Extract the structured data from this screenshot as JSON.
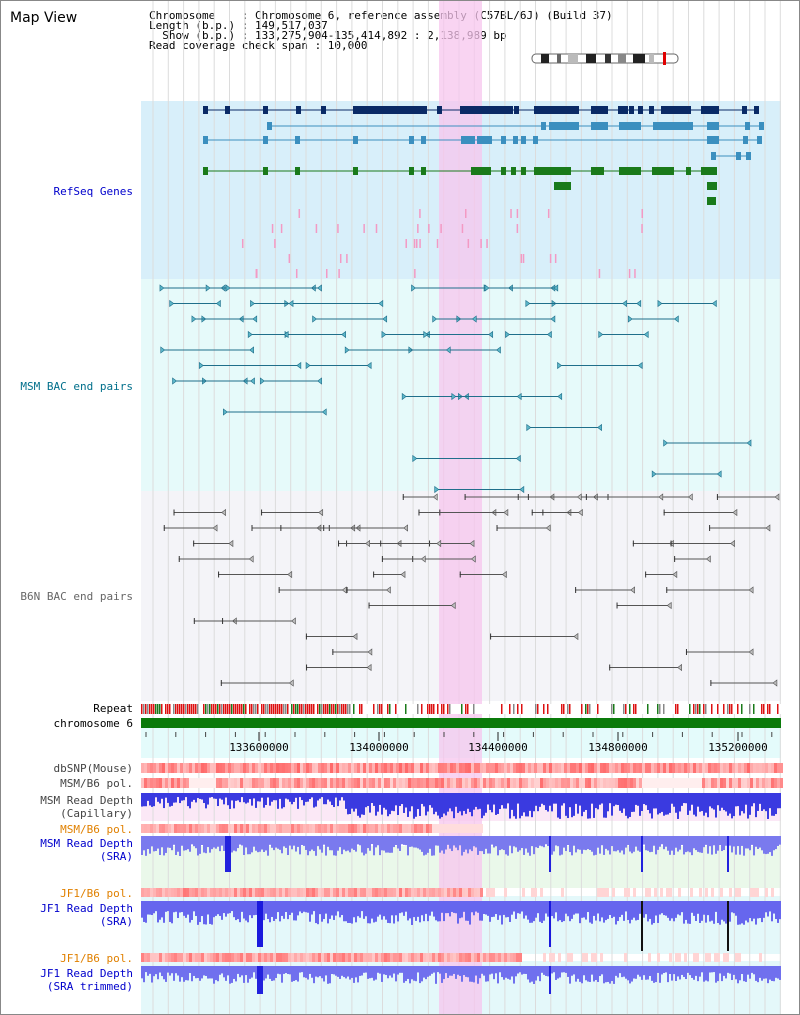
{
  "title": "Map View",
  "info": {
    "chromosome": "Chromosome    : Chromosome 6, reference assembly (C57BL/6J) (Build 37)",
    "length": "Length (b.p.) : 149,517,037",
    "show": "  Show (b.p.) : 133,275,904-135,414,892 : 2,138,989 bp",
    "coverage": "Read coverage check span : 10,000"
  },
  "sections": {
    "refseq": "RefSeq Genes",
    "msm_bac": "MSM BAC end pairs",
    "b6n_bac": "B6N BAC end pairs"
  },
  "tracks": {
    "repeat": "Repeat",
    "chromosome": "chromosome 6",
    "dbsnp": "dbSNP(Mouse)",
    "msm_pol1": "MSM/B6 pol.",
    "msm_depth_cap_1": "MSM Read Depth",
    "msm_depth_cap_2": "(Capillary)",
    "msm_pol2": "MSM/B6 pol.",
    "msm_depth_sra_1": "MSM Read Depth",
    "msm_depth_sra_2": "(SRA)",
    "jf1_pol1": "JF1/B6 pol.",
    "jf1_depth_sra_1": "JF1 Read Depth",
    "jf1_depth_sra_2": "(SRA)",
    "jf1_pol2": "JF1/B6 pol.",
    "jf1_depth_trim_1": "JF1 Read Depth",
    "jf1_depth_trim_2": "(SRA trimmed)"
  },
  "axis": {
    "ticks": [
      "133600000",
      "134000000",
      "134400000",
      "134800000",
      "135200000"
    ]
  },
  "colors": {
    "refseq_dark": "#0a2a66",
    "refseq_mid": "#3b8fbf",
    "refseq_green": "#1a7a1a",
    "msm_blue": "#1f6f8b",
    "b6n_gray": "#555555",
    "highlight": "#f7c6ee",
    "label_blue": "#0000cc",
    "label_teal": "#006f8b",
    "label_orange": "#e08000"
  }
}
